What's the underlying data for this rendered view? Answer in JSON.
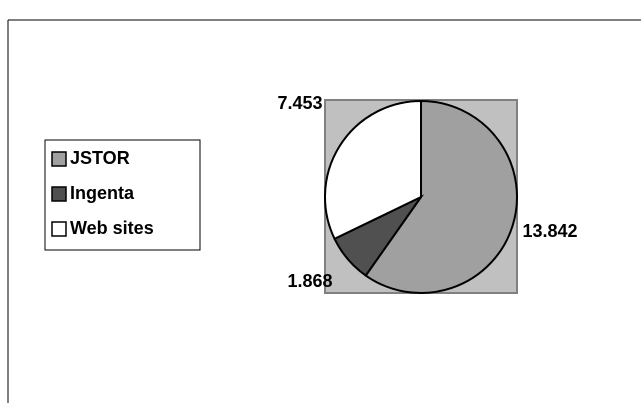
{
  "chart_data": {
    "type": "pie",
    "categories": [
      "JSTOR",
      "Ingenta",
      "Web sites"
    ],
    "values": [
      13.842,
      1.868,
      7.453
    ],
    "colors": [
      "#a0a0a0",
      "#505050",
      "#ffffff"
    ],
    "plot_background": "#c0c0c0",
    "legend": "left"
  }
}
